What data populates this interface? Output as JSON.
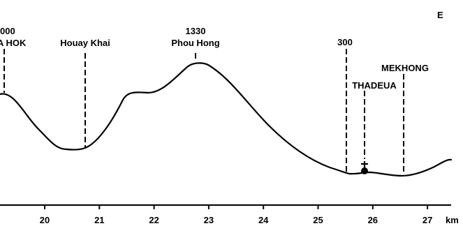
{
  "direction_label": "E",
  "unit_label": "km",
  "axis": {
    "ticks": [
      {
        "km": 20,
        "label": "20"
      },
      {
        "km": 21,
        "label": "21"
      },
      {
        "km": 22,
        "label": "22"
      },
      {
        "km": 23,
        "label": "23"
      },
      {
        "km": 24,
        "label": "24"
      },
      {
        "km": 25,
        "label": "25"
      },
      {
        "km": 26,
        "label": "26"
      },
      {
        "km": 27,
        "label": "27"
      }
    ]
  },
  "landmarks": [
    {
      "id": "hok",
      "km": 19.4,
      "name": "A HOK",
      "elevation_label": "000"
    },
    {
      "id": "houay-khai",
      "km": 20.75,
      "name": "Houay Khai"
    },
    {
      "id": "phou-hong",
      "km": 22.78,
      "name": "Phou Hong",
      "elevation_label": "1330"
    },
    {
      "id": "km25-5",
      "km": 25.5,
      "elevation_label": "300"
    },
    {
      "id": "thadeua",
      "km": 25.82,
      "name": "THADEUA"
    },
    {
      "id": "mekhong",
      "km": 26.55,
      "name": "MEKHONG"
    }
  ],
  "church_marker": {
    "km": 25.82,
    "icon": "church-cross-icon"
  }
}
